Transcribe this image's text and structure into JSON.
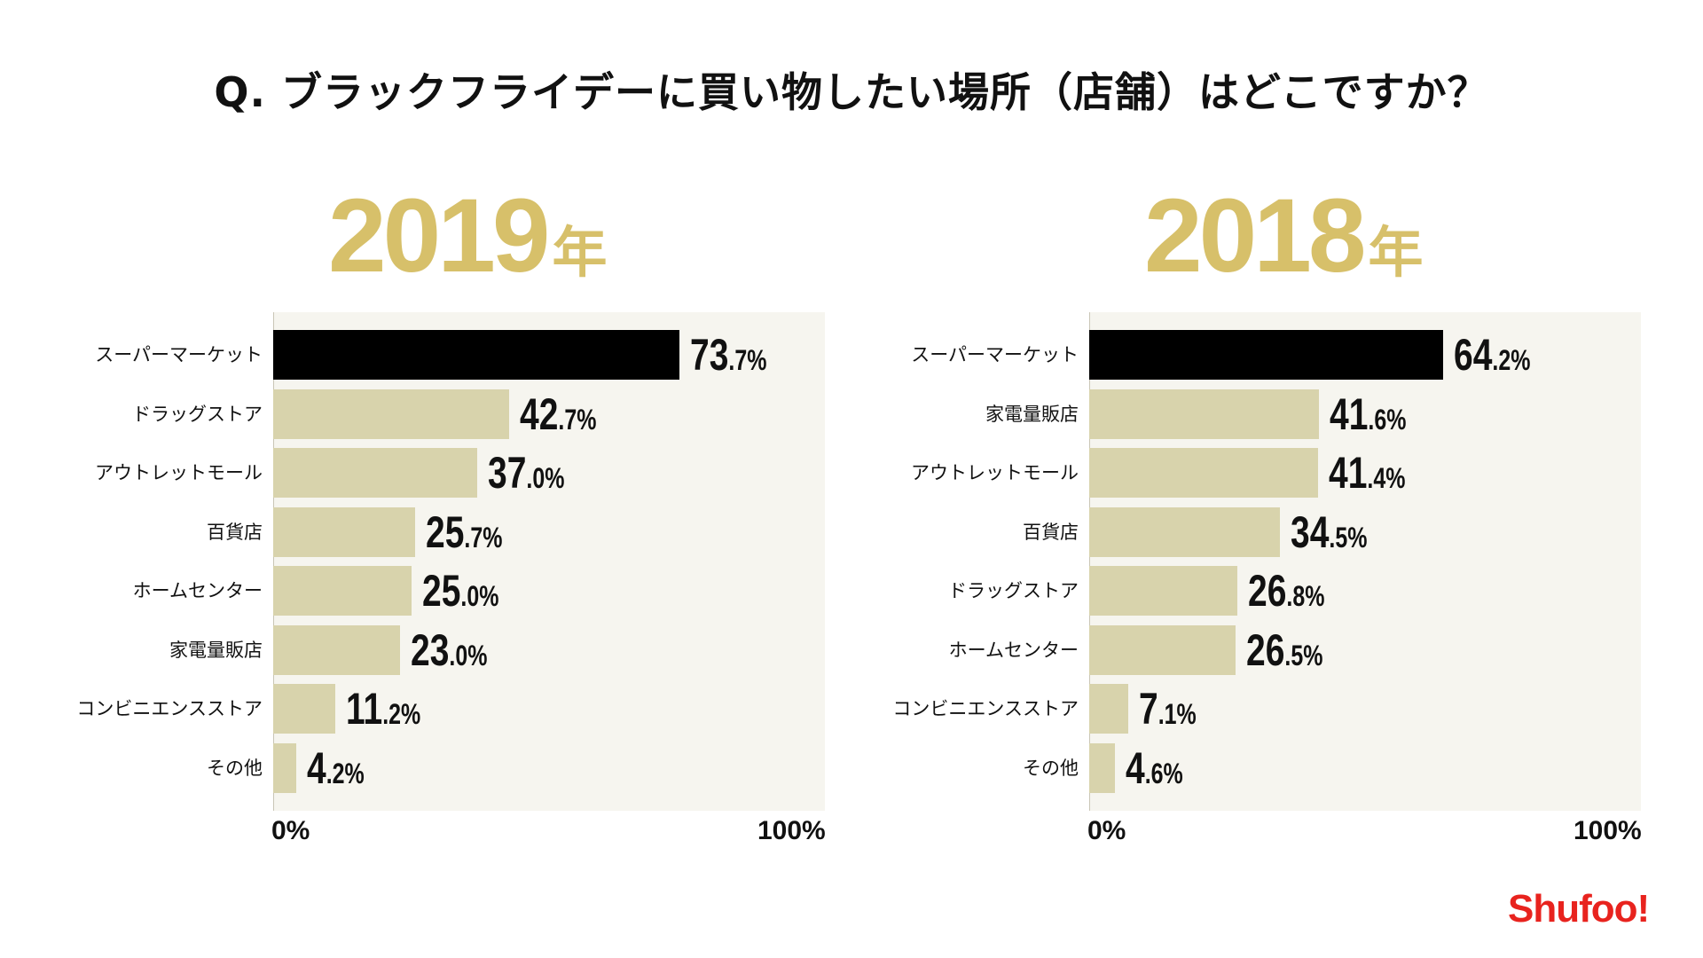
{
  "question": "Q. ブラックフライデーに買い物したい場所（店舗）はどこですか？",
  "colors": {
    "title_gold": "#d7c06a",
    "top_bar": "#000000",
    "other_bar": "#d8d3ac",
    "panel_bg": "#f6f5ef",
    "logo_red": "#e8231e"
  },
  "logo": "Shufoo!",
  "chart_data": [
    {
      "type": "bar",
      "orientation": "horizontal",
      "title_year": "2019",
      "title_suffix": "年",
      "xlim": [
        0,
        100
      ],
      "axis_min_label": "0%",
      "axis_max_label": "100%",
      "categories": [
        "スーパーマーケット",
        "ドラッグストア",
        "アウトレットモール",
        "百貨店",
        "ホームセンター",
        "家電量販店",
        "コンビニエンスストア",
        "その他"
      ],
      "values": [
        73.7,
        42.7,
        37.0,
        25.7,
        25.0,
        23.0,
        11.2,
        4.2
      ],
      "value_labels": [
        "73.7%",
        "42.7%",
        "37.0%",
        "25.7%",
        "25.0%",
        "23.0%",
        "11.2%",
        "4.2%"
      ]
    },
    {
      "type": "bar",
      "orientation": "horizontal",
      "title_year": "2018",
      "title_suffix": "年",
      "xlim": [
        0,
        100
      ],
      "axis_min_label": "0%",
      "axis_max_label": "100%",
      "categories": [
        "スーパーマーケット",
        "家電量販店",
        "アウトレットモール",
        "百貨店",
        "ドラッグストア",
        "ホームセンター",
        "コンビニエンスストア",
        "その他"
      ],
      "values": [
        64.2,
        41.6,
        41.4,
        34.5,
        26.8,
        26.5,
        7.1,
        4.6
      ],
      "value_labels": [
        "64.2%",
        "41.6%",
        "41.4%",
        "34.5%",
        "26.8%",
        "26.5%",
        "7.1%",
        "4.6%"
      ]
    }
  ]
}
